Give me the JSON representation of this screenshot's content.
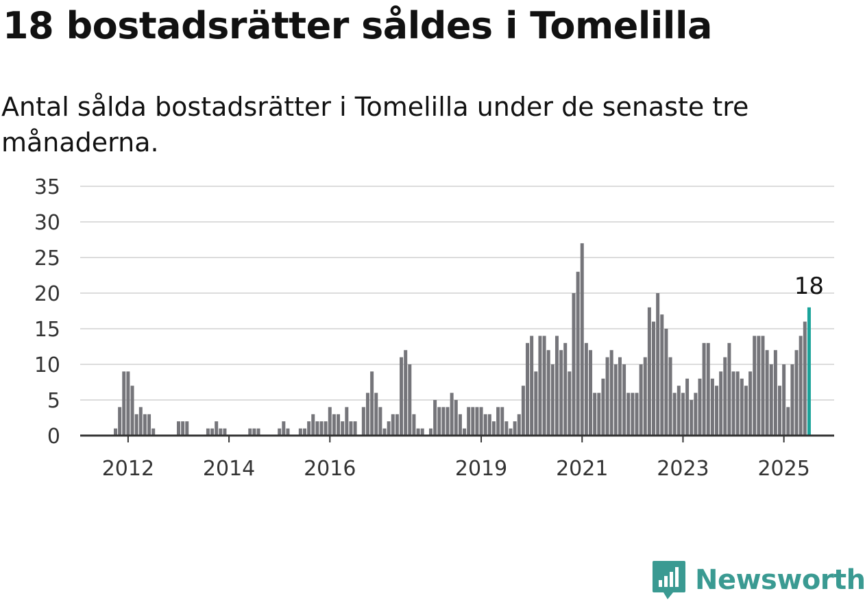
{
  "header": {
    "title": "18 bostadsrätter såldes i Tomelilla",
    "subtitle": "Antal sålda bostadsrätter i Tomelilla under de senaste tre månaderna."
  },
  "brand": {
    "name": "Newsworthy",
    "color": "#3a9a92"
  },
  "chart_data": {
    "type": "bar",
    "title": "18 bostadsrätter såldes i Tomelilla",
    "subtitle": "Antal sålda bostadsrätter i Tomelilla under de senaste tre månaderna.",
    "ylim": [
      0,
      35
    ],
    "yticks": [
      0,
      5,
      10,
      15,
      20,
      25,
      30,
      35
    ],
    "xtick_labels": [
      "2012",
      "2014",
      "2016",
      "2019",
      "2021",
      "2023",
      "2025"
    ],
    "x_start": "2011-10",
    "x_interval": "month",
    "grid": true,
    "bar_color": "#75757a",
    "highlight_color": "#1aa39a",
    "highlight_label": "18",
    "values": [
      1,
      4,
      9,
      9,
      7,
      3,
      4,
      3,
      3,
      1,
      0,
      0,
      0,
      0,
      0,
      2,
      2,
      2,
      0,
      0,
      0,
      0,
      1,
      1,
      2,
      1,
      1,
      0,
      0,
      0,
      0,
      0,
      1,
      1,
      1,
      0,
      0,
      0,
      0,
      1,
      2,
      1,
      0,
      0,
      1,
      1,
      2,
      3,
      2,
      2,
      2,
      4,
      3,
      3,
      2,
      4,
      2,
      2,
      0,
      4,
      6,
      9,
      6,
      4,
      1,
      2,
      3,
      3,
      11,
      12,
      10,
      3,
      1,
      1,
      0,
      1,
      5,
      4,
      4,
      4,
      6,
      5,
      3,
      1,
      4,
      4,
      4,
      4,
      3,
      3,
      2,
      4,
      4,
      2,
      1,
      2,
      3,
      7,
      13,
      14,
      9,
      14,
      14,
      12,
      10,
      14,
      12,
      13,
      9,
      20,
      23,
      27,
      13,
      12,
      6,
      6,
      8,
      11,
      12,
      10,
      11,
      10,
      6,
      6,
      6,
      10,
      11,
      18,
      16,
      20,
      17,
      15,
      11,
      6,
      7,
      6,
      8,
      5,
      6,
      8,
      13,
      13,
      8,
      7,
      9,
      11,
      13,
      9,
      9,
      8,
      7,
      9,
      14,
      14,
      14,
      12,
      10,
      12,
      7,
      10,
      4,
      10,
      12,
      14,
      16,
      18
    ]
  }
}
